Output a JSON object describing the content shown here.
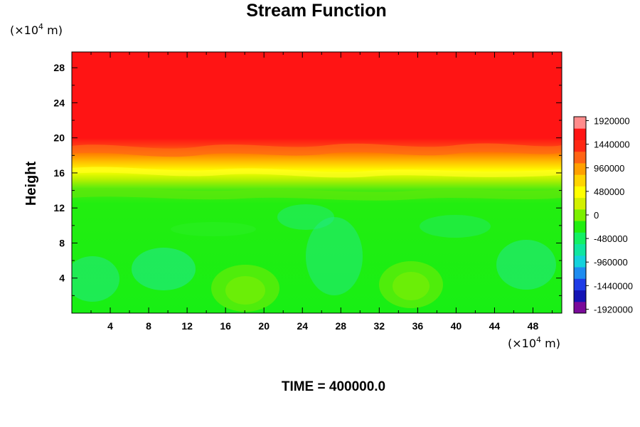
{
  "chart_data": {
    "type": "heatmap",
    "title": "Stream Function",
    "ylabel": "Height",
    "xlabel": "",
    "x_unit_prefix": "(×10",
    "x_unit_exp": "4",
    "x_unit_suffix": " m)",
    "y_unit_prefix": "(×10",
    "y_unit_exp": "4",
    "y_unit_suffix": " m)",
    "xlim": [
      0,
      51
    ],
    "ylim": [
      0,
      29.8
    ],
    "x_ticks": [
      "4",
      "8",
      "12",
      "16",
      "20",
      "24",
      "28",
      "32",
      "36",
      "40",
      "44",
      "48"
    ],
    "y_ticks": [
      "4",
      "8",
      "12",
      "16",
      "20",
      "24",
      "28"
    ],
    "grid": false,
    "colorbar": {
      "min": -2000000,
      "max": 2000000,
      "labels": [
        "1920000",
        "1440000",
        "960000",
        "480000",
        "0",
        "-480000",
        "-960000",
        "-1440000",
        "-1920000"
      ],
      "label_values": [
        1920000,
        1440000,
        960000,
        480000,
        0,
        -480000,
        -960000,
        -1440000,
        -1920000
      ],
      "colors": [
        "#7a0a9a",
        "#1414b4",
        "#1e3ce6",
        "#1e8cf0",
        "#14d2dc",
        "#10e6a0",
        "#14f064",
        "#22ee10",
        "#7cf000",
        "#d2f000",
        "#ffff00",
        "#ffd400",
        "#ffa000",
        "#ff6414",
        "#ff2814",
        "#ff1414",
        "#ff8c8c"
      ]
    },
    "field_description": {
      "upper_value": 1750000,
      "transition_height": 16,
      "lower_mean": 0
    },
    "footer": "TIME = 400000.0"
  }
}
